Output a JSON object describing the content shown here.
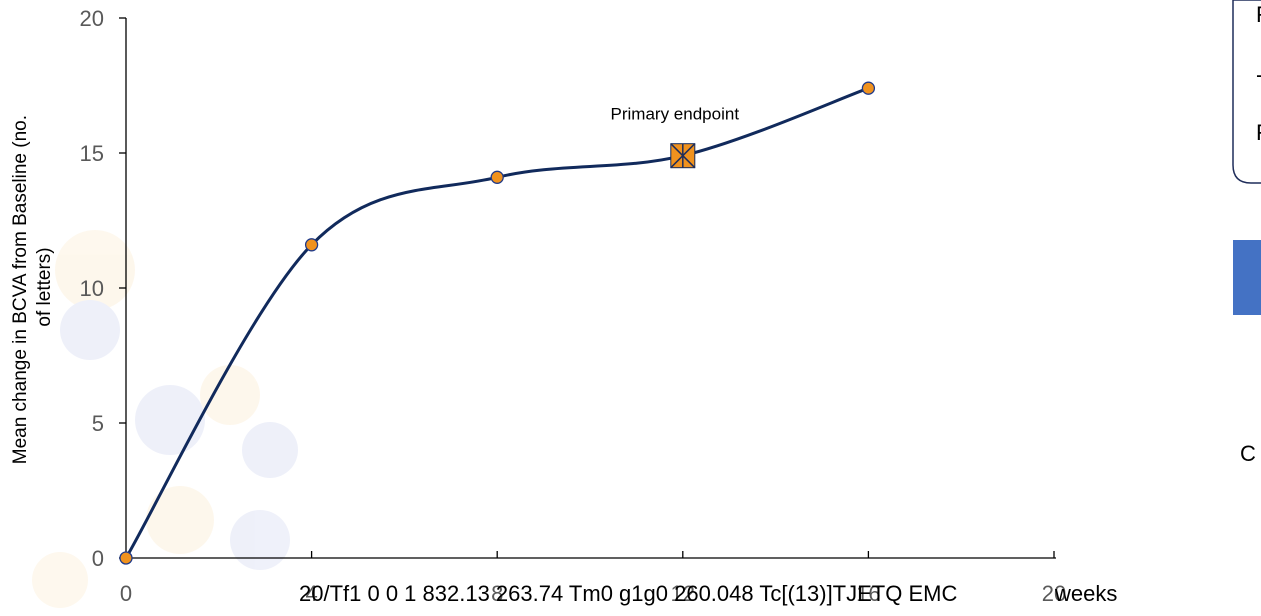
{
  "chart_data": {
    "type": "line",
    "title": "",
    "ylabel": "Mean change in BCVA from Baseline (no. of letters)",
    "xlabel": "",
    "ylim": [
      0,
      20
    ],
    "yticks": [
      0,
      5,
      10,
      15,
      20
    ],
    "x_tick_labels": [
      "0",
      "4",
      "8",
      "12",
      "16",
      "20"
    ],
    "x": [
      0,
      4,
      8,
      12,
      16
    ],
    "series": [
      {
        "values": [
          0,
          11.6,
          14.1,
          14.9,
          17.4
        ]
      }
    ],
    "grid": false,
    "annotations": [
      {
        "text": "Primary endpoint",
        "x": 12,
        "y": 14.9
      }
    ],
    "colors": {
      "line": "#112a5c",
      "marker_fill": "#f0921e",
      "marker_stroke": "#1f3a8a",
      "endpoint_fill": "#f0921e",
      "axis": "#000000",
      "side_box_fill": "#4472c4"
    }
  },
  "overlay_text": {
    "garbled_line": "20/Tf1 0 0 1 832.13 263.74 Tm0 g1g0 260.048 Tc[(13)]TJETQ EMC",
    "x_axis_suffix": "weeks"
  },
  "side_panel": {
    "letters": [
      "F",
      "-",
      "F"
    ],
    "bottom_letter": "C"
  }
}
